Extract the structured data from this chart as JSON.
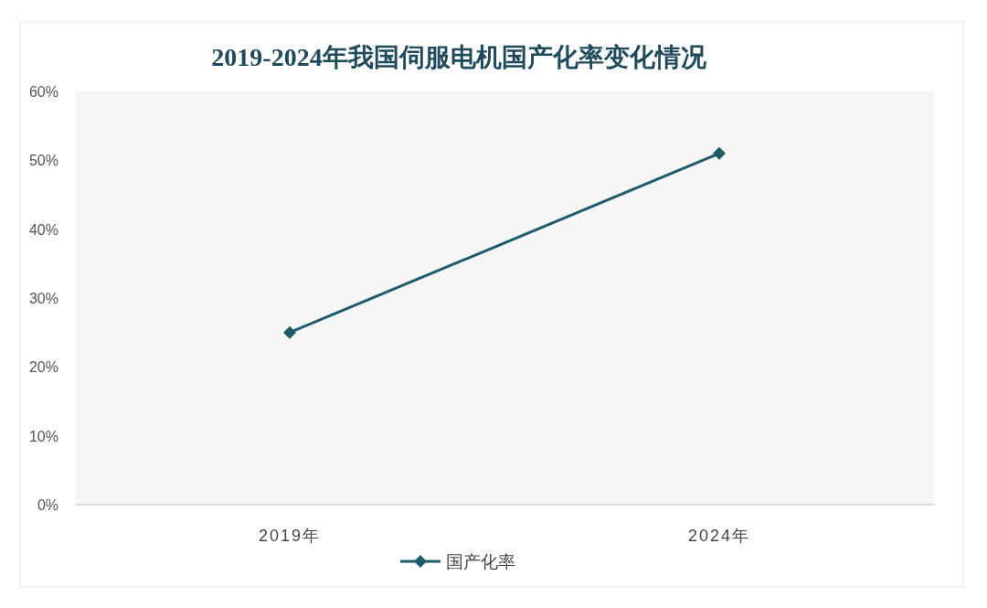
{
  "chart_data": {
    "type": "line",
    "title": "2019-2024年我国伺服电机国产化率变化情况",
    "categories": [
      "2019年",
      "2024年"
    ],
    "series": [
      {
        "name": "国产化率",
        "color": "#1f5c6b",
        "values": [
          25,
          51
        ]
      }
    ],
    "ylim": [
      0,
      60
    ],
    "yticks": [
      {
        "value": 0,
        "label": "0%"
      },
      {
        "value": 10,
        "label": "10%"
      },
      {
        "value": 20,
        "label": "20%"
      },
      {
        "value": 30,
        "label": "30%"
      },
      {
        "value": 40,
        "label": "40%"
      },
      {
        "value": 50,
        "label": "50%"
      },
      {
        "value": 60,
        "label": "60%"
      }
    ],
    "grid": false,
    "legend": "bottom",
    "marker": "diamond",
    "line_style": "solid"
  }
}
